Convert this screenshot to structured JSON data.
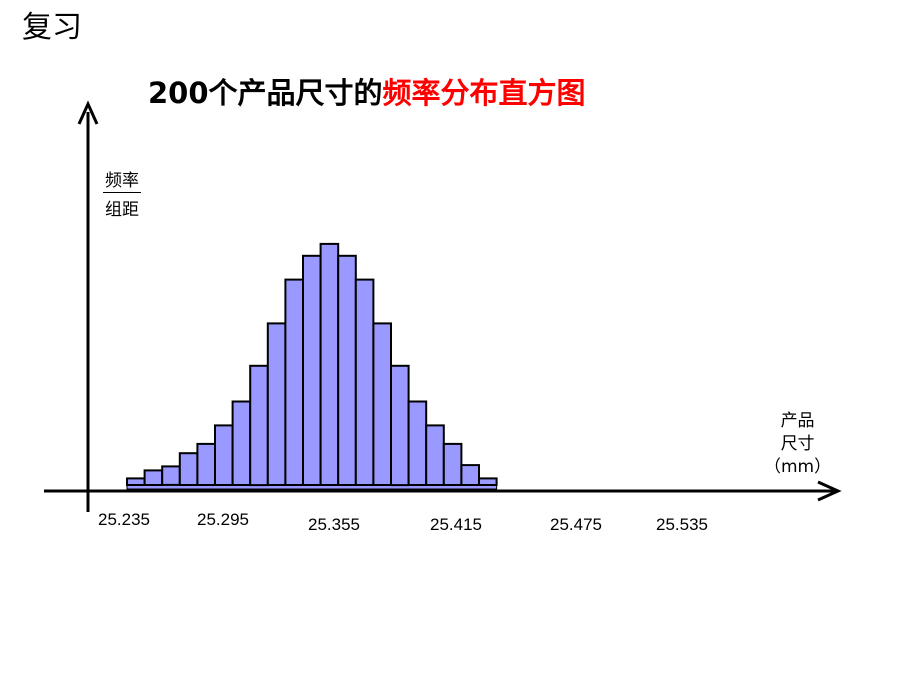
{
  "heading": "复习",
  "title": {
    "prefix": "200个产品尺寸的",
    "accent": "频率分布直方图"
  },
  "colors": {
    "bar_fill": "#9999ff",
    "bar_stroke": "#000000",
    "accent": "#ff0000"
  },
  "chart_data": {
    "type": "bar",
    "title": "200个产品尺寸的频率分布直方图",
    "ylabel": {
      "numerator": "频率",
      "denominator": "组距"
    },
    "xlabel": [
      "产品",
      "尺寸",
      "（mm）"
    ],
    "xticks": [
      "25.235",
      "25.295",
      "25.355",
      "25.415",
      "25.475",
      "25.535"
    ],
    "bins": 21,
    "values": [
      0.5,
      1.1,
      1.4,
      2.4,
      3.1,
      4.5,
      6.3,
      9.0,
      12.2,
      15.5,
      17.3,
      18.2,
      17.3,
      15.5,
      12.2,
      9.0,
      6.3,
      4.5,
      3.1,
      1.5,
      0.5
    ],
    "grid": false
  }
}
